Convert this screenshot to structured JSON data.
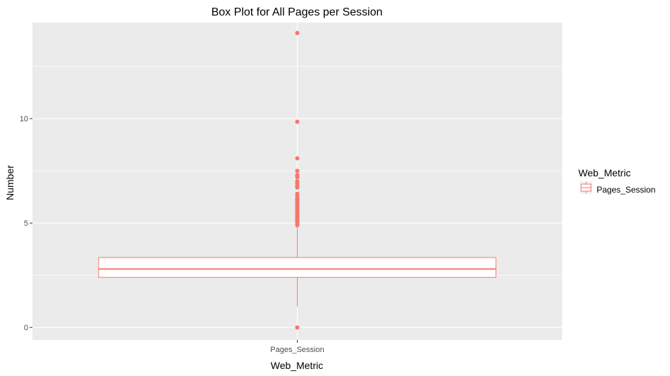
{
  "chart_data": {
    "type": "box",
    "title": "Box Plot for All Pages per Session",
    "xlabel": "Web_Metric",
    "ylabel": "Number",
    "categories": [
      "Pages_Session"
    ],
    "ylim": [
      -0.6,
      14.6
    ],
    "yticks": [
      0,
      5,
      10
    ],
    "ytick_labels": [
      "0",
      "5",
      "10"
    ],
    "grid": true,
    "legend": {
      "title": "Web_Metric",
      "position": "right",
      "entries": [
        "Pages_Session"
      ]
    },
    "series": [
      {
        "category": "Pages_Session",
        "min": 1.0,
        "q1": 2.4,
        "median": 2.8,
        "q3": 3.35,
        "max": 4.9,
        "outliers": [
          0,
          4.9,
          4.95,
          5.0,
          5.05,
          5.1,
          5.15,
          5.2,
          5.25,
          5.3,
          5.35,
          5.4,
          5.45,
          5.5,
          5.55,
          5.6,
          5.65,
          5.7,
          5.75,
          5.8,
          5.85,
          5.9,
          5.95,
          6.0,
          6.05,
          6.1,
          6.15,
          6.2,
          6.3,
          6.4,
          6.7,
          6.75,
          6.8,
          6.9,
          7.0,
          7.2,
          7.3,
          7.5,
          8.1,
          9.85,
          14.1
        ]
      }
    ],
    "colors": {
      "box": "#F8766D",
      "panel": "#EBEBEB",
      "grid": "#FFFFFF"
    }
  }
}
